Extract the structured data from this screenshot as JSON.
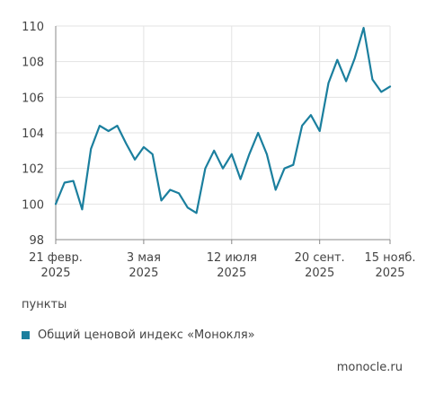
{
  "chart_data": {
    "type": "line",
    "title": "",
    "xlabel": "",
    "ylabel": "пункты",
    "ylim": [
      98,
      110
    ],
    "y_ticks": [
      98,
      100,
      102,
      104,
      106,
      108,
      110
    ],
    "grid": true,
    "legend_position": "bottom-left",
    "x_ticks": [
      {
        "line1": "21 февр.",
        "line2": "2025",
        "index": 0
      },
      {
        "line1": "3 мая",
        "line2": "2025",
        "index": 10
      },
      {
        "line1": "12 июля",
        "line2": "2025",
        "index": 20
      },
      {
        "line1": "20 сент.",
        "line2": "2025",
        "index": 30
      },
      {
        "line1": "15 нояб.",
        "line2": "2025",
        "index": 38
      }
    ],
    "series": [
      {
        "name": "Общий ценовой индекс «Монокля»",
        "color": "#1b7f9e",
        "values": [
          100.0,
          101.2,
          101.3,
          99.7,
          103.1,
          104.4,
          104.1,
          104.4,
          103.4,
          102.5,
          103.2,
          102.8,
          100.2,
          100.8,
          100.6,
          99.8,
          99.5,
          102.0,
          103.0,
          102.0,
          102.8,
          101.4,
          102.8,
          104.0,
          102.8,
          100.8,
          102.0,
          102.2,
          104.4,
          105.0,
          104.1,
          106.8,
          108.1,
          106.9,
          108.2,
          109.9,
          107.0,
          106.3,
          106.6
        ]
      }
    ]
  },
  "unit_label": "пункты",
  "legend": {
    "label": "Общий ценовой индекс «Монокля»",
    "color": "#1b7f9e"
  },
  "source": "monocle.ru"
}
